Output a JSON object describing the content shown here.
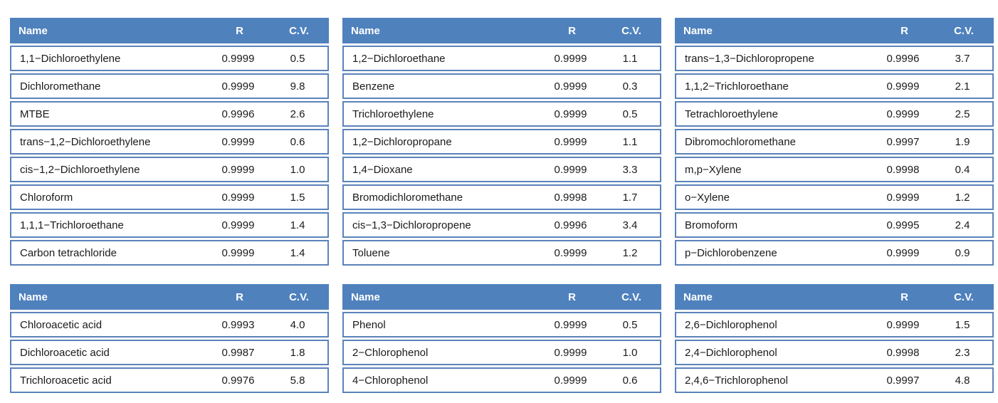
{
  "accent_color": "#4f81bd",
  "row_border_color": "#5b83ba",
  "header_text_color": "#ffffff",
  "body_text_color": "#1a1a1a",
  "chart_data": [
    {
      "type": "table",
      "columns": [
        "Name",
        "R",
        "C.V."
      ],
      "rows": [
        [
          "1,1−Dichloroethylene",
          "0.9999",
          "0.5"
        ],
        [
          "Dichloromethane",
          "0.9999",
          "9.8"
        ],
        [
          "MTBE",
          "0.9996",
          "2.6"
        ],
        [
          "trans−1,2−Dichloroethylene",
          "0.9999",
          "0.6"
        ],
        [
          "cis−1,2−Dichloroethylene",
          "0.9999",
          "1.0"
        ],
        [
          "Chloroform",
          "0.9999",
          "1.5"
        ],
        [
          "1,1,1−Trichloroethane",
          "0.9999",
          "1.4"
        ],
        [
          "Carbon tetrachloride",
          "0.9999",
          "1.4"
        ]
      ]
    },
    {
      "type": "table",
      "columns": [
        "Name",
        "R",
        "C.V."
      ],
      "rows": [
        [
          "1,2−Dichloroethane",
          "0.9999",
          "1.1"
        ],
        [
          "Benzene",
          "0.9999",
          "0.3"
        ],
        [
          "Trichloroethylene",
          "0.9999",
          "0.5"
        ],
        [
          "1,2−Dichloropropane",
          "0.9999",
          "1.1"
        ],
        [
          "1,4−Dioxane",
          "0.9999",
          "3.3"
        ],
        [
          "Bromodichloromethane",
          "0.9998",
          "1.7"
        ],
        [
          "cis−1,3−Dichloropropene",
          "0.9996",
          "3.4"
        ],
        [
          "Toluene",
          "0.9999",
          "1.2"
        ]
      ]
    },
    {
      "type": "table",
      "columns": [
        "Name",
        "R",
        "C.V."
      ],
      "rows": [
        [
          "trans−1,3−Dichloropropene",
          "0.9996",
          "3.7"
        ],
        [
          "1,1,2−Trichloroethane",
          "0.9999",
          "2.1"
        ],
        [
          "Tetrachloroethylene",
          "0.9999",
          "2.5"
        ],
        [
          "Dibromochloromethane",
          "0.9997",
          "1.9"
        ],
        [
          "m,p−Xylene",
          "0.9998",
          "0.4"
        ],
        [
          "o−Xylene",
          "0.9999",
          "1.2"
        ],
        [
          "Bromoform",
          "0.9995",
          "2.4"
        ],
        [
          "p−Dichlorobenzene",
          "0.9999",
          "0.9"
        ]
      ]
    },
    {
      "type": "table",
      "columns": [
        "Name",
        "R",
        "C.V."
      ],
      "rows": [
        [
          "Chloroacetic acid",
          "0.9993",
          "4.0"
        ],
        [
          "Dichloroacetic acid",
          "0.9987",
          "1.8"
        ],
        [
          "Trichloroacetic acid",
          "0.9976",
          "5.8"
        ]
      ]
    },
    {
      "type": "table",
      "columns": [
        "Name",
        "R",
        "C.V."
      ],
      "rows": [
        [
          "Phenol",
          "0.9999",
          "0.5"
        ],
        [
          "2−Chlorophenol",
          "0.9999",
          "1.0"
        ],
        [
          "4−Chlorophenol",
          "0.9999",
          "0.6"
        ]
      ]
    },
    {
      "type": "table",
      "columns": [
        "Name",
        "R",
        "C.V."
      ],
      "rows": [
        [
          "2,6−Dichlorophenol",
          "0.9999",
          "1.5"
        ],
        [
          "2,4−Dichlorophenol",
          "0.9998",
          "2.3"
        ],
        [
          "2,4,6−Trichlorophenol",
          "0.9997",
          "4.8"
        ]
      ]
    }
  ]
}
